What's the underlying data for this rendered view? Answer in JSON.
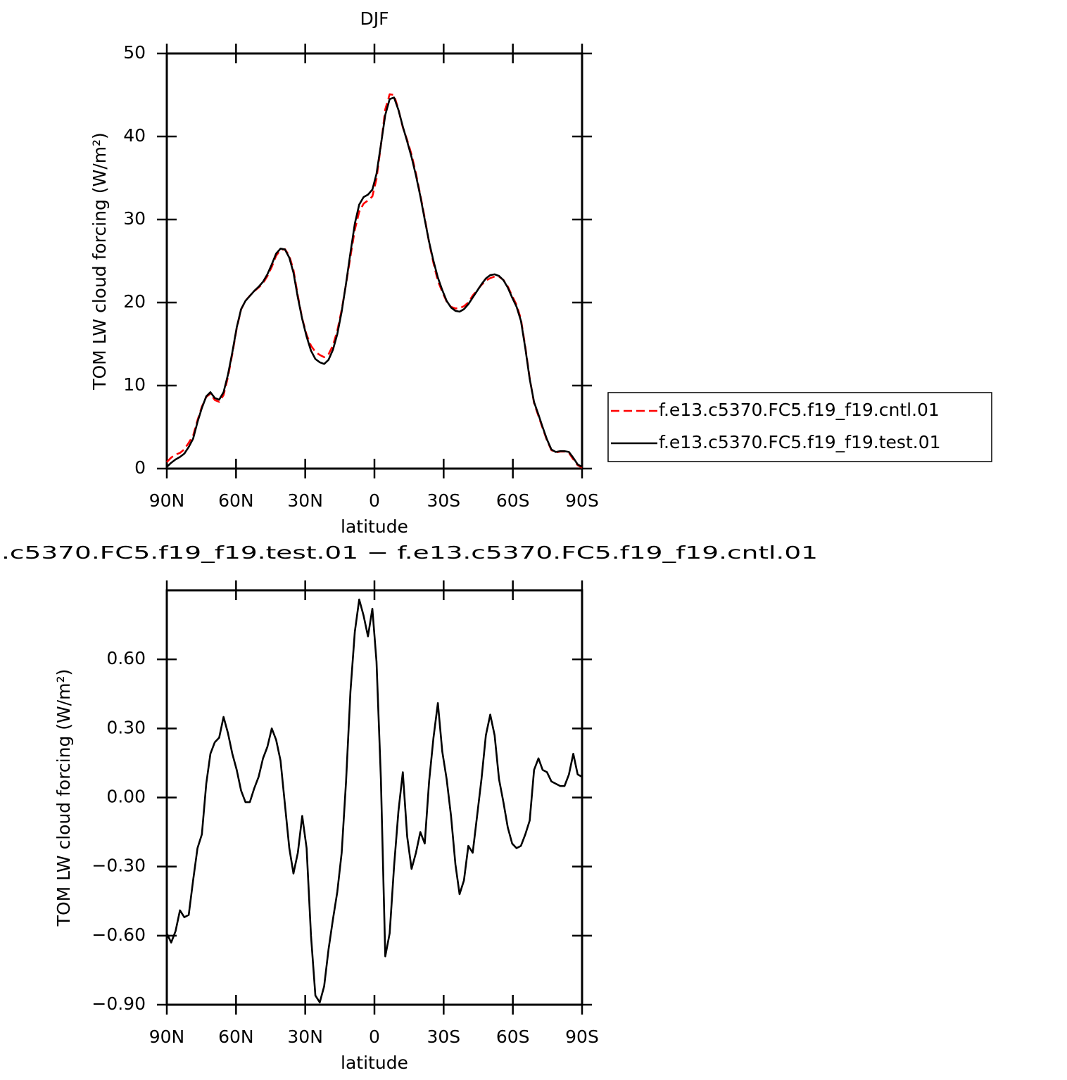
{
  "chart_data": [
    {
      "type": "line",
      "title": "DJF",
      "xlabel": "latitude",
      "ylabel": "TOM LW cloud forcing (W/m²)",
      "x": [
        90,
        88.1,
        86.2,
        84.3,
        82.4,
        80.5,
        78.6,
        76.7,
        74.8,
        72.9,
        71.1,
        69.2,
        67.3,
        65.4,
        63.5,
        61.6,
        59.7,
        57.8,
        55.9,
        54,
        52.1,
        50.2,
        48.3,
        46.4,
        44.5,
        42.6,
        40.7,
        38.8,
        36.9,
        35.1,
        33.2,
        31.3,
        29.4,
        27.5,
        25.6,
        23.7,
        21.8,
        19.9,
        18,
        16.1,
        14.2,
        12.3,
        10.4,
        8.5,
        6.6,
        4.7,
        2.8,
        0.9,
        -0.9,
        -2.8,
        -4.7,
        -6.6,
        -8.5,
        -10.4,
        -12.3,
        -14.2,
        -16.1,
        -18,
        -19.9,
        -21.8,
        -23.7,
        -25.6,
        -27.5,
        -29.4,
        -31.3,
        -33.2,
        -35.1,
        -36.9,
        -38.8,
        -40.7,
        -42.6,
        -44.5,
        -46.4,
        -48.3,
        -50.2,
        -52.1,
        -54,
        -55.9,
        -57.8,
        -59.7,
        -61.6,
        -63.5,
        -65.4,
        -67.3,
        -69.2,
        -71.1,
        -72.9,
        -74.8,
        -76.7,
        -78.6,
        -80.5,
        -82.4,
        -84.3,
        -86.2,
        -88.1,
        -90
      ],
      "series": [
        {
          "name": "f.e13.c5370.FC5.f19_f19.cntl.01",
          "color": "#ff0000",
          "style": "dashed",
          "values": [
            0.79,
            1.33,
            1.68,
            1.89,
            2.32,
            3.11,
            3.96,
            5.82,
            7.46,
            8.64,
            9.01,
            8.26,
            8.04,
            8.85,
            11.02,
            13.81,
            16.88,
            19.17,
            20.22,
            20.82,
            21.36,
            21.81,
            22.33,
            23.18,
            24.3,
            25.65,
            26.34,
            26.43,
            25.62,
            23.93,
            20.84,
            18.08,
            16.12,
            14.8,
            14.06,
            13.69,
            13.42,
            13.76,
            14.83,
            16.61,
            19.14,
            22.23,
            25.54,
            28.78,
            30.94,
            31.91,
            32.3,
            32.78,
            34.91,
            38.92,
            43.29,
            45.09,
            45,
            43.26,
            41.09,
            39.57,
            37.81,
            35.54,
            32.95,
            30.2,
            27.23,
            24.74,
            22.59,
            21.3,
            20.12,
            19.48,
            19.29,
            19.32,
            19.56,
            20.01,
            20.84,
            21.48,
            22.12,
            22.63,
            22.94,
            23.13,
            23.12,
            22.72,
            21.93,
            20.8,
            19.72,
            18.01,
            14.66,
            10.9,
            7.88,
            6.33,
            4.88,
            3.39,
            2.23,
            1.94,
            2.05,
            2.05,
            1.9,
            1.11,
            0.4,
            0.11
          ]
        },
        {
          "name": "f.e13.c5370.FC5.f19_f19.test.01",
          "color": "#000000",
          "style": "solid",
          "values": [
            0.2,
            0.7,
            1.1,
            1.4,
            1.8,
            2.6,
            3.6,
            5.6,
            7.3,
            8.7,
            9.2,
            8.5,
            8.3,
            9.2,
            11.3,
            14,
            17,
            19.2,
            20.2,
            20.8,
            21.4,
            21.9,
            22.5,
            23.4,
            24.6,
            25.9,
            26.5,
            26.4,
            25.4,
            23.6,
            20.6,
            18,
            15.9,
            14.2,
            13.2,
            12.8,
            12.6,
            13.1,
            14.3,
            16.2,
            18.9,
            22.3,
            26,
            29.5,
            31.8,
            32.7,
            33,
            33.6,
            35.5,
            39,
            42.6,
            44.5,
            44.7,
            43.2,
            41.2,
            39.4,
            37.5,
            35.3,
            32.8,
            30,
            27.3,
            25,
            23,
            21.5,
            20.2,
            19.4,
            19,
            18.9,
            19.2,
            19.8,
            20.6,
            21.4,
            22.2,
            22.9,
            23.3,
            23.4,
            23.2,
            22.7,
            21.8,
            20.6,
            19.5,
            17.8,
            14.5,
            10.8,
            8,
            6.5,
            5,
            3.5,
            2.3,
            2,
            2.1,
            2.1,
            2,
            1.3,
            0.5,
            0.2
          ]
        }
      ],
      "xlim": [
        90,
        -90
      ],
      "xticks": [
        {
          "value": 90,
          "label": "90N"
        },
        {
          "value": 60,
          "label": "60N"
        },
        {
          "value": 30,
          "label": "30N"
        },
        0,
        {
          "value": -30,
          "label": "30S"
        },
        {
          "value": -60,
          "label": "60S"
        },
        {
          "value": -90,
          "label": "90S"
        }
      ],
      "ylim": [
        0,
        50
      ],
      "yticks": [
        0,
        10,
        20,
        30,
        40,
        50
      ],
      "legend": "right"
    },
    {
      "type": "line",
      "title": ".c5370.FC5.f19_f19.test.01 − f.e13.c5370.FC5.f19_f19.cntl.01",
      "xlabel": "latitude",
      "ylabel": "TOM LW cloud forcing (W/m²)",
      "x": [
        90,
        88.1,
        86.2,
        84.3,
        82.4,
        80.5,
        78.6,
        76.7,
        74.8,
        72.9,
        71.1,
        69.2,
        67.3,
        65.4,
        63.5,
        61.6,
        59.7,
        57.8,
        55.9,
        54,
        52.1,
        50.2,
        48.3,
        46.4,
        44.5,
        42.6,
        40.7,
        38.8,
        36.9,
        35.1,
        33.2,
        31.3,
        29.4,
        27.5,
        25.6,
        23.7,
        21.8,
        19.9,
        18,
        16.1,
        14.2,
        12.3,
        10.4,
        8.5,
        6.6,
        4.7,
        2.8,
        0.9,
        -0.9,
        -2.8,
        -4.7,
        -6.6,
        -8.5,
        -10.4,
        -12.3,
        -14.2,
        -16.1,
        -18,
        -19.9,
        -21.8,
        -23.7,
        -25.6,
        -27.5,
        -29.4,
        -31.3,
        -33.2,
        -35.1,
        -36.9,
        -38.8,
        -40.7,
        -42.6,
        -44.5,
        -46.4,
        -48.3,
        -50.2,
        -52.1,
        -54,
        -55.9,
        -57.8,
        -59.7,
        -61.6,
        -63.5,
        -65.4,
        -67.3,
        -69.2,
        -71.1,
        -72.9,
        -74.8,
        -76.7,
        -78.6,
        -80.5,
        -82.4,
        -84.3,
        -86.2,
        -88.1,
        -90
      ],
      "color": "#000000",
      "values": [
        -0.59,
        -0.63,
        -0.58,
        -0.49,
        -0.52,
        -0.51,
        -0.36,
        -0.22,
        -0.16,
        0.06,
        0.19,
        0.24,
        0.26,
        0.35,
        0.28,
        0.19,
        0.12,
        0.03,
        -0.02,
        -0.02,
        0.04,
        0.09,
        0.17,
        0.22,
        0.3,
        0.25,
        0.16,
        -0.03,
        -0.22,
        -0.33,
        -0.24,
        -0.08,
        -0.22,
        -0.6,
        -0.86,
        -0.89,
        -0.82,
        -0.66,
        -0.53,
        -0.41,
        -0.24,
        0.07,
        0.46,
        0.72,
        0.86,
        0.79,
        0.7,
        0.82,
        0.59,
        0.08,
        -0.69,
        -0.59,
        -0.3,
        -0.06,
        0.11,
        -0.17,
        -0.31,
        -0.24,
        -0.15,
        -0.2,
        0.07,
        0.26,
        0.41,
        0.2,
        0.08,
        -0.08,
        -0.29,
        -0.42,
        -0.36,
        -0.21,
        -0.24,
        -0.08,
        0.08,
        0.27,
        0.36,
        0.27,
        0.08,
        -0.02,
        -0.13,
        -0.2,
        -0.22,
        -0.21,
        -0.16,
        -0.1,
        0.12,
        0.17,
        0.12,
        0.11,
        0.07,
        0.06,
        0.05,
        0.05,
        0.1,
        0.19,
        0.1,
        0.09
      ],
      "xlim": [
        90,
        -90
      ],
      "xticks": [
        {
          "value": 90,
          "label": "90N"
        },
        {
          "value": 60,
          "label": "60N"
        },
        {
          "value": 30,
          "label": "30N"
        },
        0,
        {
          "value": -30,
          "label": "30S"
        },
        {
          "value": -60,
          "label": "60S"
        },
        {
          "value": -90,
          "label": "90S"
        }
      ],
      "ylim": [
        -0.9,
        0.9
      ],
      "yticks": [
        {
          "value": -0.9,
          "label": "−0.90"
        },
        {
          "value": -0.6,
          "label": "−0.60"
        },
        {
          "value": -0.3,
          "label": "−0.30"
        },
        {
          "value": 0,
          "label": "0.00"
        },
        {
          "value": 0.3,
          "label": "0.30"
        },
        {
          "value": 0.6,
          "label": "0.60"
        }
      ]
    }
  ]
}
